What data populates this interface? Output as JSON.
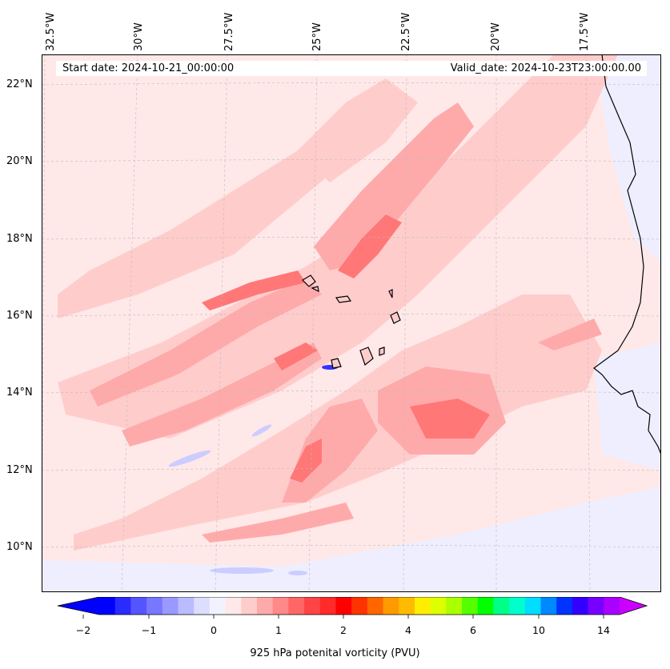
{
  "map": {
    "start_date_label": "Start date: 2024-10-21_00:00:00",
    "valid_date_label": "Valid_date: 2024-10-23T23:00:00.00",
    "longitude_labels": [
      "32.5°W",
      "30°W",
      "27.5°W",
      "25°W",
      "22.5°W",
      "20°W",
      "17.5°W"
    ],
    "latitude_labels": [
      "22°N",
      "20°N",
      "18°N",
      "16°N",
      "14°N",
      "12°N",
      "10°N"
    ],
    "background_color": "#ffe8e8",
    "coastline_color": "#000000"
  },
  "colorbar": {
    "title": "925 hPa potenital vorticity (PVU)",
    "tick_labels": [
      "−2",
      "−1",
      "0",
      "1",
      "2",
      "4",
      "6",
      "10",
      "14"
    ],
    "colors": [
      "#0000ff",
      "#2b2bff",
      "#5555ff",
      "#7777ff",
      "#9999ff",
      "#bbbbff",
      "#ddddff",
      "#f2f2ff",
      "#ffe8e8",
      "#ffcccc",
      "#ffaaaa",
      "#ff8888",
      "#ff6666",
      "#ff4444",
      "#ff2a2a",
      "#ff0000",
      "#ff3300",
      "#ff6600",
      "#ff9900",
      "#ffbb00",
      "#ffee00",
      "#ddff00",
      "#aaff00",
      "#55ff00",
      "#00ff00",
      "#00ff88",
      "#00ffcc",
      "#00ddff",
      "#0088ff",
      "#0033ff",
      "#3300ff",
      "#7700ff",
      "#aa00ff"
    ],
    "extend_low_color": "#0000ff",
    "extend_high_color": "#cc00ff"
  }
}
